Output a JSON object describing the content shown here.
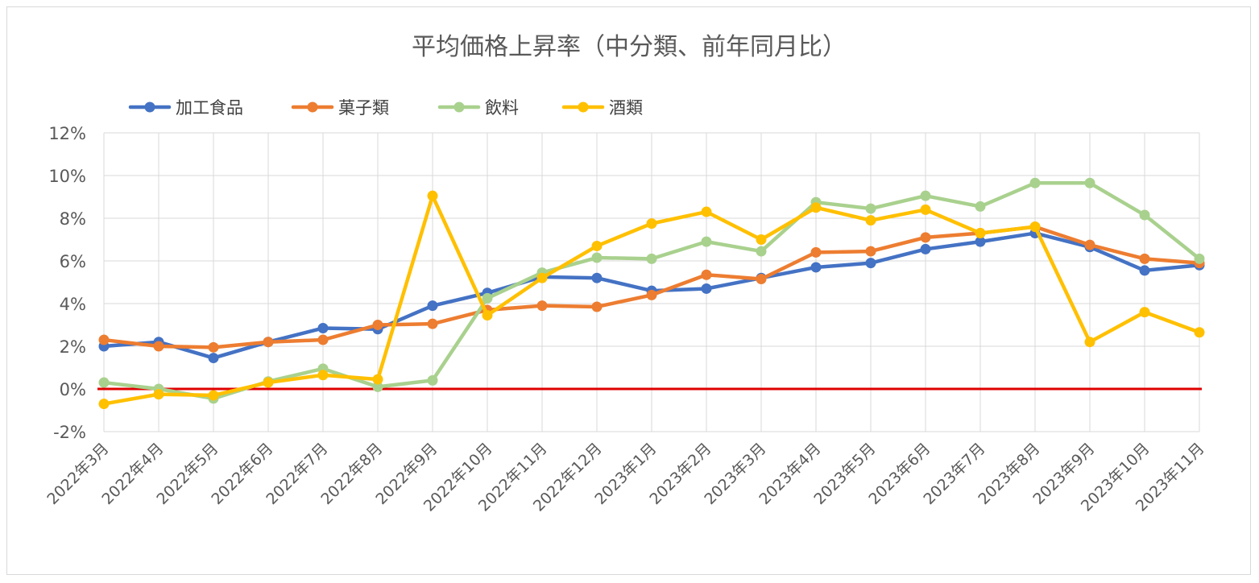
{
  "chart_data": {
    "type": "line",
    "title": "平均価格上昇率（中分類、前年同月比）",
    "xlabel": "",
    "ylabel": "",
    "x": [
      "2022年3月",
      "2022年4月",
      "2022年5月",
      "2022年6月",
      "2022年7月",
      "2022年8月",
      "2022年9月",
      "2022年10月",
      "2022年11月",
      "2022年12月",
      "2023年1月",
      "2023年2月",
      "2023年3月",
      "2023年4月",
      "2023年5月",
      "2023年6月",
      "2023年7月",
      "2023年8月",
      "2023年9月",
      "2023年10月",
      "2023年11月"
    ],
    "ylim": [
      -2,
      12
    ],
    "yticks": [
      -2,
      0,
      2,
      4,
      6,
      8,
      10,
      12
    ],
    "ytick_labels": [
      "-2%",
      "0%",
      "2%",
      "4%",
      "6%",
      "8%",
      "10%",
      "12%"
    ],
    "grid": true,
    "legend_position": "top-left",
    "reference_line": {
      "y": 0,
      "color": "#e00000"
    },
    "series": [
      {
        "name": "加工食品",
        "color": "#4472c4",
        "values": [
          2.0,
          2.2,
          1.45,
          2.2,
          2.85,
          2.8,
          3.9,
          4.5,
          5.25,
          5.2,
          4.6,
          4.7,
          5.2,
          5.7,
          5.9,
          6.55,
          6.9,
          7.3,
          6.65,
          5.55,
          5.8
        ]
      },
      {
        "name": "菓子類",
        "color": "#ed7d31",
        "values": [
          2.3,
          2.0,
          1.95,
          2.2,
          2.3,
          3.0,
          3.05,
          3.7,
          3.9,
          3.85,
          4.4,
          5.35,
          5.15,
          6.4,
          6.45,
          7.1,
          7.3,
          7.6,
          6.75,
          6.1,
          5.9
        ]
      },
      {
        "name": "飲料",
        "color": "#a9d18e",
        "values": [
          0.3,
          0.0,
          -0.45,
          0.35,
          0.95,
          0.1,
          0.4,
          4.25,
          5.45,
          6.15,
          6.1,
          6.9,
          6.45,
          8.75,
          8.45,
          9.05,
          8.55,
          9.65,
          9.65,
          8.15,
          6.1
        ]
      },
      {
        "name": "酒類",
        "color": "#ffc000",
        "values": [
          -0.7,
          -0.25,
          -0.3,
          0.3,
          0.65,
          0.45,
          9.05,
          3.45,
          5.2,
          6.7,
          7.75,
          8.3,
          7.0,
          8.5,
          7.9,
          8.4,
          7.3,
          7.6,
          2.2,
          3.6,
          2.65
        ]
      }
    ]
  }
}
